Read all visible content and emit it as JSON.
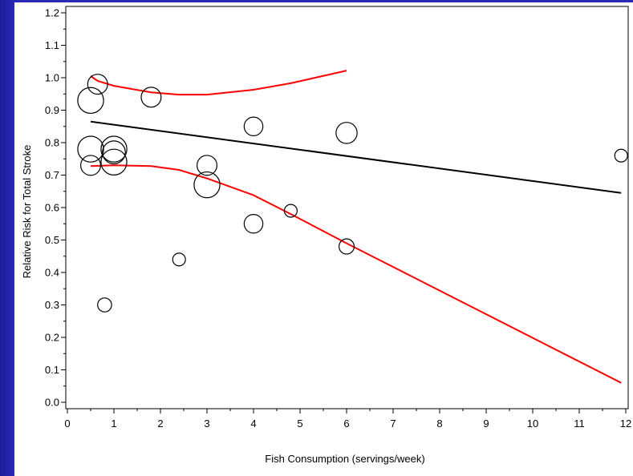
{
  "chart_data": {
    "type": "scatter",
    "title": "",
    "xlabel": "Fish Consumption (servings/week)",
    "ylabel": "Relative Risk for Total Stroke",
    "xlim": [
      0,
      12
    ],
    "ylim": [
      0.0,
      1.2
    ],
    "x_ticks": [
      "0",
      "1",
      "2",
      "3",
      "4",
      "5",
      "6",
      "7",
      "8",
      "9",
      "10",
      "11",
      "12"
    ],
    "y_ticks": [
      "0.0",
      "0.1",
      "0.2",
      "0.3",
      "0.4",
      "0.5",
      "0.6",
      "0.7",
      "0.8",
      "0.9",
      "1.0",
      "1.1",
      "1.2"
    ],
    "grid": false,
    "colors": {
      "points": "#000000",
      "fit_line": "#000000",
      "ci_lines": "#ff0000",
      "frame": "#2a2ab8"
    },
    "points": [
      {
        "x": 0.5,
        "y": 0.93,
        "weight": 3
      },
      {
        "x": 0.65,
        "y": 0.98,
        "weight": 2
      },
      {
        "x": 0.5,
        "y": 0.78,
        "weight": 3
      },
      {
        "x": 0.5,
        "y": 0.73,
        "weight": 2
      },
      {
        "x": 1.0,
        "y": 0.78,
        "weight": 3
      },
      {
        "x": 1.0,
        "y": 0.77,
        "weight": 2.5
      },
      {
        "x": 1.0,
        "y": 0.74,
        "weight": 3
      },
      {
        "x": 0.8,
        "y": 0.3,
        "weight": 1
      },
      {
        "x": 1.8,
        "y": 0.94,
        "weight": 2
      },
      {
        "x": 2.4,
        "y": 0.44,
        "weight": 0.8
      },
      {
        "x": 3.0,
        "y": 0.73,
        "weight": 2
      },
      {
        "x": 3.0,
        "y": 0.67,
        "weight": 3
      },
      {
        "x": 4.0,
        "y": 0.85,
        "weight": 1.8
      },
      {
        "x": 4.0,
        "y": 0.55,
        "weight": 1.8
      },
      {
        "x": 4.8,
        "y": 0.59,
        "weight": 0.8
      },
      {
        "x": 6.0,
        "y": 0.83,
        "weight": 2.2
      },
      {
        "x": 6.0,
        "y": 0.48,
        "weight": 1.2
      },
      {
        "x": 11.9,
        "y": 0.76,
        "weight": 0.8
      }
    ],
    "series": [
      {
        "role": "fit",
        "x": [
          0.5,
          11.9
        ],
        "y": [
          0.865,
          0.645
        ]
      },
      {
        "role": "upper_ci",
        "x": [
          0.5,
          0.65,
          1.0,
          1.8,
          2.4,
          3.0,
          4.0,
          4.8,
          6.0
        ],
        "y": [
          1.005,
          0.99,
          0.975,
          0.955,
          0.948,
          0.948,
          0.963,
          0.983,
          1.022
        ]
      },
      {
        "role": "lower_ci",
        "x": [
          0.5,
          1.0,
          1.8,
          2.4,
          3.0,
          4.0,
          4.8,
          6.0,
          11.9
        ],
        "y": [
          0.728,
          0.73,
          0.728,
          0.716,
          0.69,
          0.638,
          0.58,
          0.49,
          0.06
        ]
      }
    ]
  }
}
